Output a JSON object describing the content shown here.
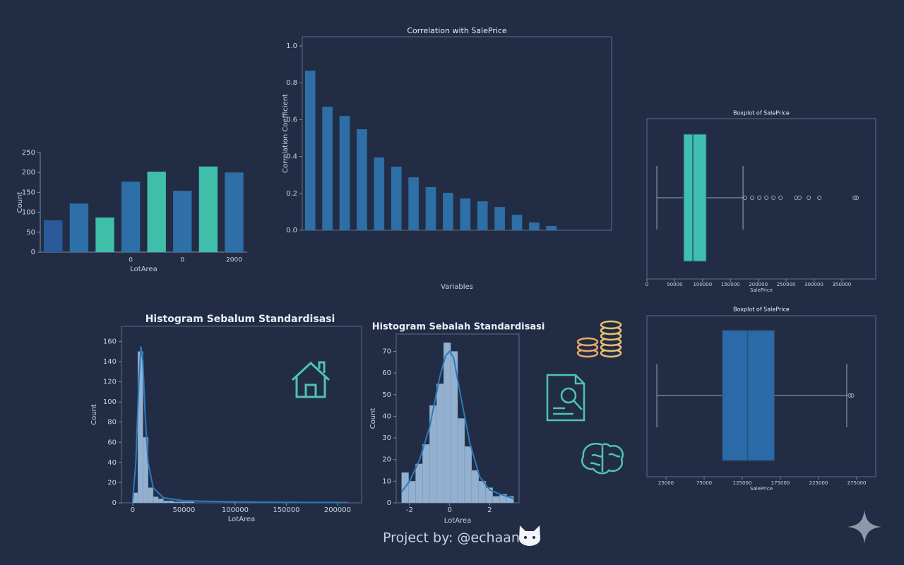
{
  "chart_data": [
    {
      "type": "bar",
      "ylabel": "Count",
      "xlabel": "LotArea",
      "categories": [
        null,
        null,
        null,
        "0",
        null,
        "0",
        null,
        "2000"
      ],
      "values": [
        80,
        122,
        87,
        177,
        202,
        154,
        215,
        200
      ],
      "colors": [
        "#2a5a9a",
        "#2d6fa6",
        "#3fbfaa",
        "#2d6fa6",
        "#3fbfaa",
        "#2d6fa6",
        "#3fbfaa",
        "#2d6fa6"
      ],
      "ylim": [
        0,
        250
      ],
      "yticks": [
        0,
        50,
        100,
        150,
        200,
        250
      ]
    },
    {
      "type": "bar",
      "title": "Correlation with SalePrice",
      "ylabel": "Correlation Coefficient",
      "xlabel": "Variables",
      "values": [
        0.866,
        0.67,
        0.62,
        0.548,
        0.395,
        0.345,
        0.287,
        0.234,
        0.203,
        0.172,
        0.157,
        0.126,
        0.084,
        0.042,
        0.023
      ],
      "color": "#2d6fa6",
      "ylim": [
        0,
        1.05
      ],
      "yticks": [
        {
          "value": 0,
          "label": "0.0"
        },
        {
          "value": 0.2,
          "label": "0.2"
        },
        {
          "value": 0.4,
          "label": "0.4"
        },
        {
          "value": 0.6,
          "label": "0.6"
        },
        {
          "value": 0.8,
          "label": "0.8"
        },
        {
          "value": 1,
          "label": "1.0"
        }
      ]
    },
    {
      "type": "box",
      "title": "Boxplot of SalePrice",
      "xlabel": "SalePrice",
      "color": "#3fbfb0",
      "whislo": 17800,
      "q1": 66000,
      "med": 82500,
      "q3": 106600,
      "whishi": 172600,
      "fliers": [
        176400,
        189100,
        201800,
        214500,
        227200,
        239800,
        267800,
        274100,
        290600,
        309600,
        373100,
        376900
      ],
      "xlim": [
        0,
        411000
      ],
      "xticks": [
        0,
        50000,
        100000,
        150000,
        200000,
        250000,
        300000,
        350000
      ]
    },
    {
      "type": "histogram",
      "title": "Histogram Sebalum Standardisasi",
      "ylabel": "Count",
      "xlabel": "LotArea",
      "color": "#a8c8e8",
      "line_color": "#2a7ac0",
      "bins": [
        0,
        5000,
        10000,
        15000,
        20000,
        25000,
        30000,
        35000,
        40000,
        45000,
        50000,
        55000,
        60000,
        65000,
        70000,
        75000,
        80000,
        85000,
        90000,
        95000,
        100000,
        105000,
        110000,
        115000,
        120000,
        125000,
        130000,
        135000,
        140000,
        145000,
        150000,
        155000,
        160000,
        165000,
        170000,
        175000,
        180000,
        185000,
        190000,
        195000,
        200000,
        205000,
        210000,
        215000
      ],
      "counts": [
        10,
        150,
        65,
        15,
        6,
        4,
        2,
        2,
        1,
        1,
        1,
        1,
        0,
        0,
        0,
        0,
        0,
        0,
        0,
        0,
        0,
        0,
        0,
        0,
        0,
        0,
        0,
        0,
        0,
        0,
        0,
        0,
        0,
        0,
        0,
        0,
        0,
        0,
        0,
        0,
        0,
        0,
        0
      ],
      "kde": {
        "x": [
          0,
          3000,
          6000,
          8000,
          10000,
          12000,
          15000,
          20000,
          30000,
          50000,
          100000,
          150000,
          210000
        ],
        "y": [
          2,
          40,
          120,
          155,
          140,
          90,
          40,
          15,
          5,
          2,
          1,
          0.5,
          0.3
        ]
      },
      "xlim": [
        -11000,
        223500
      ],
      "xticks": [
        0,
        50000,
        100000,
        150000,
        200000
      ],
      "ylim": [
        0,
        175
      ],
      "yticks": [
        0,
        20,
        40,
        60,
        80,
        100,
        120,
        140,
        160
      ]
    },
    {
      "type": "box",
      "title": "Boxplot of SalePrice",
      "xlabel": "SalePrice",
      "color": "#2a6aa8",
      "whislo": 13000,
      "q1": 99000,
      "med": 132000,
      "q3": 167000,
      "whishi": 262000,
      "fliers": [
        266000,
        269000
      ],
      "xlim": [
        0,
        300000
      ],
      "xticks": [
        25000,
        75000,
        125000,
        175000,
        225000,
        275000
      ]
    },
    {
      "type": "histogram",
      "title": "Histogram Sebalah Standardisasi",
      "ylabel": "Count",
      "xlabel": "LotArea",
      "color": "#a8c8e8",
      "line_color": "#2a7ac0",
      "bins": [
        -2.4,
        -2.05,
        -1.7,
        -1.35,
        -1.0,
        -0.65,
        -0.3,
        0.05,
        0.4,
        0.75,
        1.1,
        1.45,
        1.8,
        2.15,
        2.5,
        2.85,
        3.2
      ],
      "counts": [
        14,
        10,
        18,
        27,
        45,
        55,
        74,
        70,
        39,
        26,
        15,
        10,
        7,
        3,
        4,
        3
      ],
      "kde": {
        "x": [
          -2.4,
          -2,
          -1.5,
          -1,
          -0.5,
          -0.2,
          0,
          0.2,
          0.5,
          1,
          1.5,
          2,
          2.5,
          3.2
        ],
        "y": [
          5,
          10,
          20,
          35,
          58,
          68,
          70,
          67,
          52,
          28,
          12,
          6,
          4,
          2
        ]
      },
      "xlim": [
        -2.67,
        3.47
      ],
      "xticks": [
        -2,
        0,
        2
      ],
      "ylim": [
        0,
        78
      ],
      "yticks": [
        0,
        10,
        20,
        30,
        40,
        50,
        60,
        70
      ]
    }
  ],
  "footer": "Project by: @echaan"
}
